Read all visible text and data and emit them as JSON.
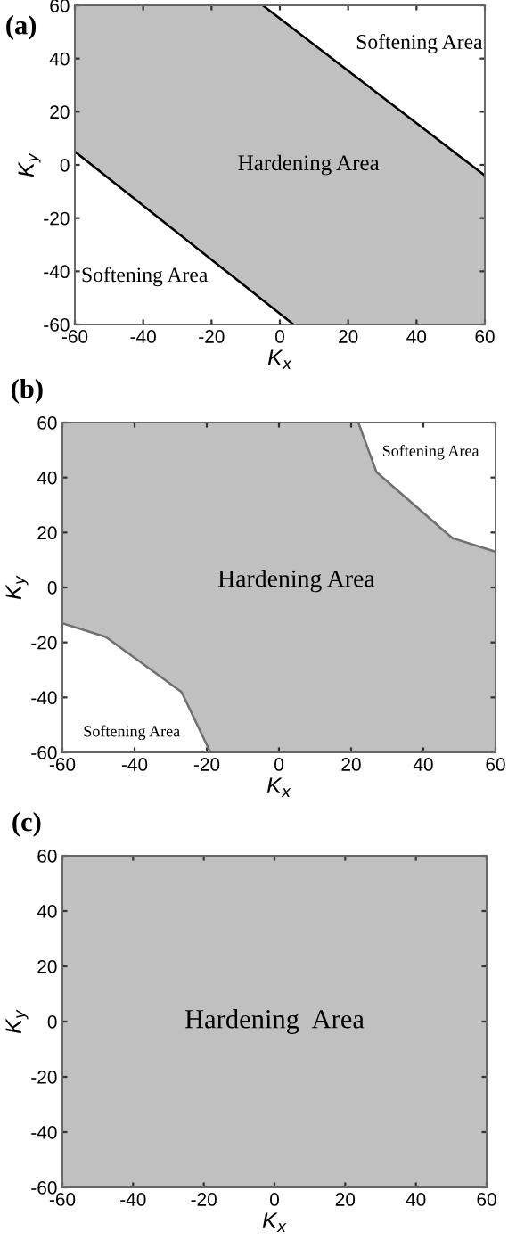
{
  "chart_data": [
    {
      "type": "line",
      "title": "(a)",
      "xlabel": "K$_{x}$",
      "ylabel": "K$_{y}$",
      "xlim": [
        -60,
        60
      ],
      "ylim": [
        -60,
        60
      ],
      "xticks": [
        -60,
        -40,
        -20,
        0,
        20,
        40,
        60
      ],
      "yticks": [
        -60,
        -40,
        -20,
        0,
        20,
        40,
        60
      ],
      "grid": false,
      "series": [
        {
          "color": "#000000",
          "x": [
            -5,
            60
          ],
          "values": [
            60,
            -4
          ]
        },
        {
          "color": "#000000",
          "x": [
            -60,
            4
          ],
          "values": [
            5,
            -60
          ]
        }
      ],
      "annotations": [
        "Softening Area",
        "Hardening Area",
        "Softening Area"
      ]
    },
    {
      "type": "line",
      "title": "(b)",
      "xlabel": "K$_{x}$",
      "ylabel": "K$_{y}$",
      "xlim": [
        -60,
        60
      ],
      "ylim": [
        -60,
        60
      ],
      "xticks": [
        -60,
        -40,
        -20,
        0,
        20,
        40,
        60
      ],
      "yticks": [
        -60,
        -40,
        -20,
        0,
        20,
        40,
        60
      ],
      "grid": false,
      "series": [
        {
          "color": "#707070",
          "x": [
            22,
            27,
            48,
            60
          ],
          "values": [
            60,
            42,
            18,
            13
          ]
        },
        {
          "color": "#707070",
          "x": [
            -60,
            -48,
            -27,
            -19
          ],
          "values": [
            -13,
            -18,
            -38,
            -60
          ]
        }
      ],
      "annotations": [
        "Softening Area",
        "Hardening Area",
        "Softening Area"
      ]
    },
    {
      "type": "area",
      "title": "(c)",
      "xlabel": "K$_{x}$",
      "ylabel": "K$_{y}$",
      "xlim": [
        -60,
        60
      ],
      "ylim": [
        -60,
        60
      ],
      "xticks": [
        -60,
        -40,
        -20,
        0,
        20,
        40,
        60
      ],
      "yticks": [
        -60,
        -40,
        -20,
        0,
        20,
        40,
        60
      ],
      "grid": false,
      "series": [
        {
          "color": "#c0c0c0",
          "x": [
            -60,
            60
          ],
          "values": [
            60,
            60
          ]
        },
        {
          "color": "#c0c0c0",
          "x": [
            -60,
            60
          ],
          "values": [
            -60,
            -60
          ]
        }
      ],
      "annotations": [
        "Hardening  Area"
      ]
    }
  ]
}
